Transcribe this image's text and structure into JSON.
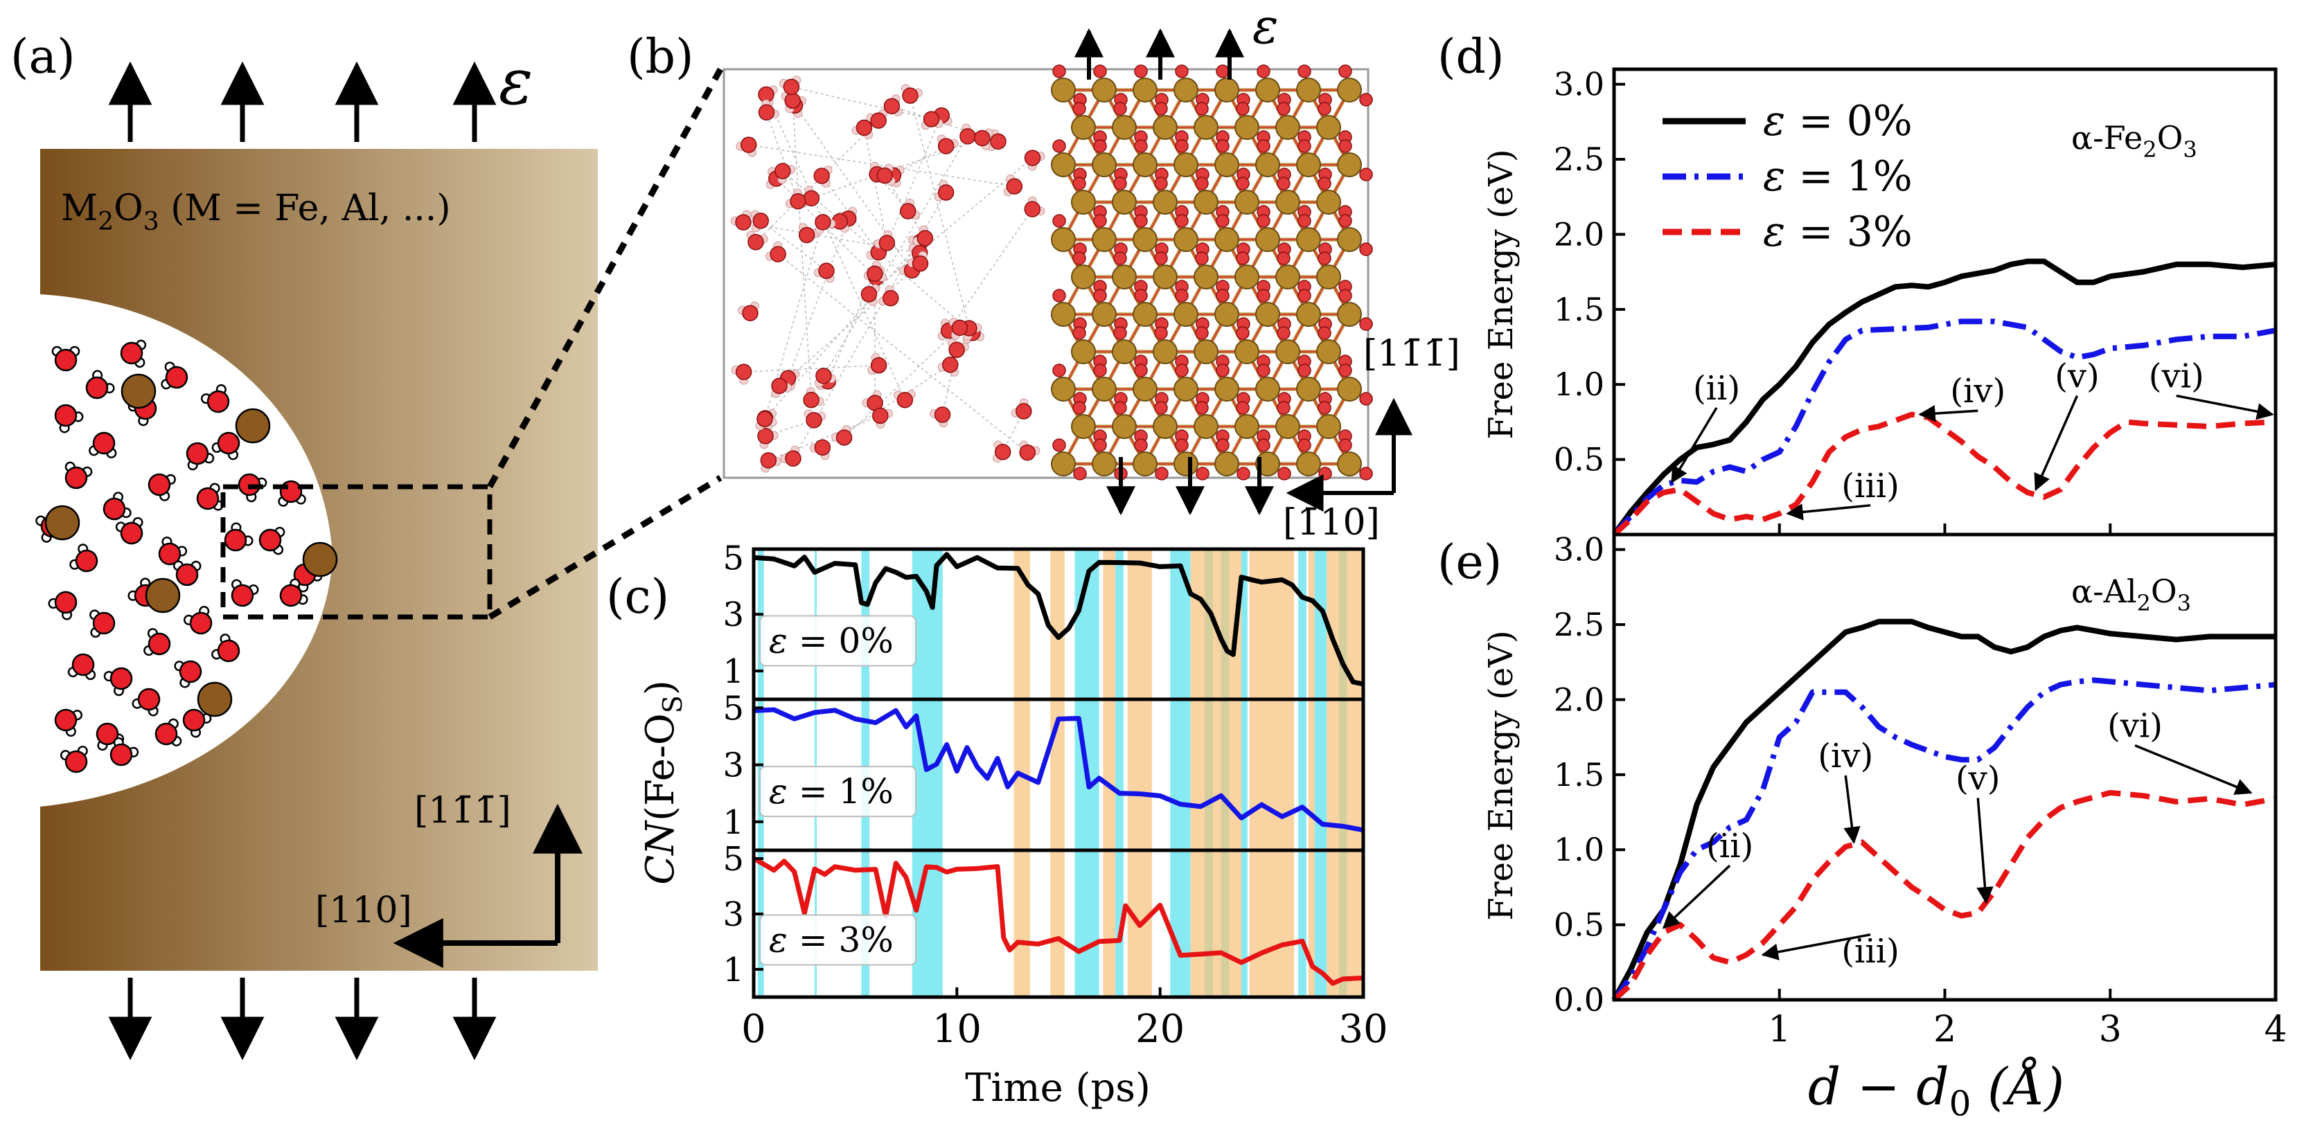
{
  "panel_labels": {
    "a": "(a)",
    "b": "(b)",
    "c": "(c)",
    "d": "(d)",
    "e": "(e)"
  },
  "strain_symbol": "ε",
  "panel_a": {
    "material": "M",
    "material_sub": "2",
    "material_rest": "O",
    "material_sub2": "3",
    "material_tail": " (M = Fe, Al, ...)",
    "dir_vertical": "[11̄1̄]",
    "dir_horizontal": "[110]"
  },
  "panel_b": {
    "dir_vertical": "[11̄1̄]",
    "dir_horizontal": "[1̄10]"
  },
  "colors": {
    "black": "#000000",
    "blue": "#1414e6",
    "red": "#e61414",
    "cyan": "#5fe3ee",
    "orange": "#f7c27a",
    "oxide_dark": "#7a5020",
    "oxide_light": "#d7c5a2",
    "oxygen": "#e8202a",
    "metal": "#8c5a1e"
  },
  "chart_data": [
    {
      "id": "c",
      "type": "line",
      "xlabel": "Time (ps)",
      "ylabel": "CN(Fe-O_S)",
      "ylabel_main": "CN",
      "ylabel_rest": "(Fe-O",
      "ylabel_sub": "S",
      "ylabel_close": ")",
      "xlim": [
        0,
        30
      ],
      "ylim": [
        0,
        5.3
      ],
      "xticks": [
        "0",
        "10",
        "20",
        "30"
      ],
      "yticks": [
        "1",
        "3",
        "5"
      ],
      "series": [
        {
          "name": "ε = 0%",
          "label_prefix": "ε",
          "label_value": " = 0%",
          "color": "#000000",
          "x": [
            0,
            1,
            2,
            2.5,
            3,
            4,
            5,
            5.3,
            5.6,
            6,
            6.5,
            7,
            7.5,
            8,
            8.5,
            8.8,
            9,
            9.5,
            10,
            11,
            12,
            13,
            13.5,
            14,
            14.5,
            15,
            15.5,
            16,
            16.5,
            17,
            18,
            19,
            20,
            21,
            21.5,
            22,
            22.5,
            23,
            23.3,
            23.6,
            24,
            24.5,
            25,
            26,
            26.5,
            27,
            27.5,
            28,
            28.5,
            29,
            29.5,
            30
          ],
          "y": [
            5,
            4.9,
            4.8,
            4.9,
            4.6,
            4.7,
            4.8,
            3.4,
            3.3,
            4.2,
            4.5,
            4.6,
            4.2,
            4.4,
            3.8,
            3.2,
            4.8,
            5,
            4.8,
            4.9,
            4.7,
            4.6,
            4.0,
            3.8,
            2.5,
            2.3,
            2.4,
            3.2,
            4.5,
            4.8,
            4.9,
            4.7,
            4.8,
            4.6,
            3.8,
            3.5,
            3.0,
            2.2,
            1.6,
            1.7,
            4.2,
            4.3,
            4.1,
            4.2,
            4.1,
            3.5,
            3.6,
            3.0,
            2.2,
            1.2,
            0.6,
            0.6
          ]
        },
        {
          "name": "ε = 1%",
          "label_prefix": "ε",
          "label_value": " = 1%",
          "color": "#1414e6",
          "x": [
            0,
            1,
            2,
            3,
            4,
            5,
            6,
            7,
            7.5,
            8,
            8.5,
            9,
            9.5,
            10,
            10.5,
            11,
            11.5,
            12,
            12.5,
            13,
            14,
            15,
            15.5,
            16,
            16.5,
            17,
            18,
            19,
            20,
            21,
            22,
            23,
            24,
            25,
            26,
            27,
            28,
            29,
            30
          ],
          "y": [
            4.8,
            5,
            4.6,
            4.8,
            5,
            4.5,
            4.6,
            4.8,
            4.4,
            4.7,
            2.8,
            3.1,
            3.6,
            2.9,
            3.5,
            3.0,
            2.5,
            3.2,
            2.3,
            2.6,
            2.5,
            4.5,
            4.7,
            4.6,
            2.2,
            2.6,
            1.9,
            2.1,
            1.8,
            1.7,
            1.5,
            1.9,
            1.2,
            1.5,
            1.3,
            1.4,
            1.0,
            0.8,
            0.7
          ]
        },
        {
          "name": "ε = 3%",
          "label_prefix": "ε",
          "label_value": " = 3%",
          "color": "#e61414",
          "x": [
            0,
            1,
            1.5,
            2,
            2.5,
            3,
            3.5,
            4,
            5,
            6,
            6.5,
            7,
            7.5,
            8,
            8.5,
            9,
            9.5,
            10,
            11,
            12,
            12.3,
            12.6,
            13,
            14,
            15,
            16,
            17,
            18,
            18.3,
            19,
            20,
            21,
            22,
            23,
            24,
            25,
            26,
            27,
            27.5,
            28,
            28.5,
            29,
            30
          ],
          "y": [
            4.9,
            4.7,
            4.8,
            4.6,
            3.0,
            4.6,
            4.5,
            4.6,
            4.7,
            4.5,
            3.0,
            4.8,
            4.3,
            3.2,
            4.6,
            4.8,
            4.4,
            4.7,
            4.6,
            4.7,
            2.2,
            1.6,
            2.1,
            1.8,
            2.2,
            1.6,
            2.0,
            2.1,
            3.2,
            2.7,
            3.2,
            1.6,
            1.5,
            1.6,
            1.3,
            1.5,
            2.0,
            1.9,
            1.2,
            0.8,
            0.5,
            0.7,
            0.6
          ]
        }
      ],
      "bands_cyan": [
        [
          0.2,
          0.5
        ],
        [
          3.0,
          3.1
        ],
        [
          5.3,
          5.7
        ],
        [
          7.8,
          9.3
        ],
        [
          15.8,
          17.0
        ],
        [
          17.8,
          18.2
        ],
        [
          20.5,
          21.5
        ],
        [
          22.2,
          22.6
        ],
        [
          23.0,
          23.4
        ],
        [
          24.0,
          24.3
        ],
        [
          26.8,
          27.2
        ],
        [
          27.6,
          28.2
        ],
        [
          28.8,
          29.2
        ]
      ],
      "bands_orange": [
        [
          12.8,
          13.6
        ],
        [
          14.6,
          15.3
        ],
        [
          17.2,
          17.8
        ],
        [
          18.4,
          19.6
        ],
        [
          21.5,
          24.0
        ],
        [
          24.4,
          26.6
        ],
        [
          27.3,
          27.6
        ],
        [
          28.2,
          30.0
        ]
      ]
    },
    {
      "id": "d",
      "type": "line",
      "title": "α-Fe₂O₃",
      "title_main": "α-Fe",
      "title_sub1": "2",
      "title_mid": "O",
      "title_sub2": "3",
      "ylabel": "Free Energy (eV)",
      "xlim": [
        0,
        4
      ],
      "ylim": [
        0,
        3.1
      ],
      "yticks": [
        "0.5",
        "1.0",
        "1.5",
        "2.0",
        "2.5",
        "3.0"
      ],
      "series": [
        {
          "name": "ε = 0%",
          "label_prefix": "ε",
          "label_value": " = 0%",
          "color": "#000000",
          "dash": "solid",
          "x": [
            0,
            0.1,
            0.2,
            0.3,
            0.4,
            0.5,
            0.6,
            0.7,
            0.8,
            0.9,
            1.0,
            1.1,
            1.2,
            1.3,
            1.4,
            1.5,
            1.6,
            1.7,
            1.8,
            1.9,
            2.0,
            2.1,
            2.2,
            2.3,
            2.4,
            2.5,
            2.6,
            2.7,
            2.8,
            2.9,
            3.0,
            3.2,
            3.4,
            3.6,
            3.8,
            4.0
          ],
          "y": [
            0,
            0.15,
            0.28,
            0.4,
            0.5,
            0.58,
            0.6,
            0.63,
            0.75,
            0.9,
            1.0,
            1.12,
            1.28,
            1.4,
            1.48,
            1.55,
            1.6,
            1.65,
            1.66,
            1.65,
            1.68,
            1.72,
            1.74,
            1.76,
            1.8,
            1.82,
            1.82,
            1.75,
            1.68,
            1.68,
            1.72,
            1.75,
            1.8,
            1.8,
            1.78,
            1.8
          ]
        },
        {
          "name": "ε = 1%",
          "label_prefix": "ε",
          "label_value": " = 1%",
          "color": "#1414e6",
          "dash": "dashdot",
          "x": [
            0,
            0.1,
            0.2,
            0.3,
            0.4,
            0.5,
            0.6,
            0.7,
            0.8,
            0.9,
            1.0,
            1.1,
            1.2,
            1.3,
            1.4,
            1.5,
            1.7,
            1.9,
            2.1,
            2.3,
            2.5,
            2.6,
            2.7,
            2.8,
            2.9,
            3.0,
            3.2,
            3.4,
            3.6,
            3.8,
            4.0
          ],
          "y": [
            0,
            0.12,
            0.24,
            0.33,
            0.36,
            0.35,
            0.42,
            0.45,
            0.42,
            0.5,
            0.55,
            0.72,
            0.95,
            1.15,
            1.3,
            1.36,
            1.37,
            1.38,
            1.42,
            1.42,
            1.38,
            1.3,
            1.22,
            1.18,
            1.2,
            1.24,
            1.26,
            1.3,
            1.32,
            1.32,
            1.36
          ]
        },
        {
          "name": "ε = 3%",
          "label_prefix": "ε",
          "label_value": " = 3%",
          "color": "#e61414",
          "dash": "dashed",
          "x": [
            0,
            0.1,
            0.2,
            0.3,
            0.4,
            0.5,
            0.6,
            0.7,
            0.8,
            0.9,
            1.0,
            1.1,
            1.2,
            1.3,
            1.4,
            1.5,
            1.6,
            1.7,
            1.8,
            1.9,
            2.0,
            2.1,
            2.2,
            2.3,
            2.4,
            2.5,
            2.6,
            2.7,
            2.8,
            2.9,
            3.0,
            3.1,
            3.2,
            3.4,
            3.6,
            3.8,
            4.0
          ],
          "y": [
            0,
            0.1,
            0.22,
            0.28,
            0.3,
            0.22,
            0.14,
            0.1,
            0.12,
            0.1,
            0.14,
            0.2,
            0.35,
            0.55,
            0.65,
            0.7,
            0.72,
            0.76,
            0.8,
            0.78,
            0.7,
            0.62,
            0.52,
            0.45,
            0.35,
            0.28,
            0.25,
            0.3,
            0.45,
            0.58,
            0.68,
            0.75,
            0.74,
            0.73,
            0.72,
            0.74,
            0.75
          ]
        }
      ],
      "annotations": [
        {
          "label": "(ii)",
          "text_x": 0.62,
          "text_y": 0.9,
          "point_x": 0.35,
          "point_y": 0.35
        },
        {
          "label": "(iii)",
          "text_x": 1.55,
          "text_y": 0.25,
          "point_x": 1.05,
          "point_y": 0.14
        },
        {
          "label": "(iv)",
          "text_x": 2.2,
          "text_y": 0.88,
          "point_x": 1.85,
          "point_y": 0.8
        },
        {
          "label": "(v)",
          "text_x": 2.8,
          "text_y": 0.98,
          "point_x": 2.55,
          "point_y": 0.3
        },
        {
          "label": "(vi)",
          "text_x": 3.4,
          "text_y": 0.98,
          "point_x": 3.98,
          "point_y": 0.8
        }
      ]
    },
    {
      "id": "e",
      "type": "line",
      "title": "α-Al₂O₃",
      "title_main": "α-Al",
      "title_sub1": "2",
      "title_mid": "O",
      "title_sub2": "3",
      "ylabel": "Free Energy (eV)",
      "xlabel": "d − d0 (Å)",
      "xlabel_d": "d",
      "xlabel_minus": " − ",
      "xlabel_d0": "d",
      "xlabel_sub": "0",
      "xlabel_unit": " (Å)",
      "xlim": [
        0,
        4
      ],
      "ylim": [
        0,
        3.1
      ],
      "xticks": [
        "1",
        "2",
        "3",
        "4"
      ],
      "yticks": [
        "0.0",
        "0.5",
        "1.0",
        "1.5",
        "2.0",
        "2.5",
        "3.0"
      ],
      "series": [
        {
          "name": "ε = 0%",
          "color": "#000000",
          "dash": "solid",
          "x": [
            0,
            0.1,
            0.2,
            0.3,
            0.4,
            0.5,
            0.6,
            0.7,
            0.8,
            0.9,
            1.0,
            1.1,
            1.2,
            1.3,
            1.4,
            1.5,
            1.6,
            1.7,
            1.8,
            1.9,
            2.0,
            2.1,
            2.2,
            2.3,
            2.4,
            2.5,
            2.6,
            2.7,
            2.8,
            2.9,
            3.0,
            3.2,
            3.4,
            3.6,
            3.8,
            4.0
          ],
          "y": [
            0,
            0.2,
            0.45,
            0.6,
            0.9,
            1.3,
            1.55,
            1.7,
            1.85,
            1.95,
            2.05,
            2.15,
            2.25,
            2.35,
            2.45,
            2.48,
            2.52,
            2.52,
            2.52,
            2.48,
            2.45,
            2.42,
            2.42,
            2.35,
            2.32,
            2.35,
            2.42,
            2.46,
            2.48,
            2.46,
            2.44,
            2.42,
            2.4,
            2.42,
            2.42,
            2.42
          ]
        },
        {
          "name": "ε = 1%",
          "color": "#1414e6",
          "dash": "dashdot",
          "x": [
            0,
            0.1,
            0.2,
            0.3,
            0.4,
            0.5,
            0.6,
            0.7,
            0.8,
            0.9,
            1.0,
            1.1,
            1.2,
            1.3,
            1.4,
            1.5,
            1.6,
            1.7,
            1.8,
            1.9,
            2.0,
            2.1,
            2.2,
            2.3,
            2.4,
            2.5,
            2.6,
            2.7,
            2.8,
            2.9,
            3.0,
            3.2,
            3.4,
            3.6,
            3.8,
            4.0
          ],
          "y": [
            0,
            0.15,
            0.35,
            0.6,
            0.85,
            1.0,
            1.05,
            1.15,
            1.2,
            1.4,
            1.75,
            1.85,
            2.05,
            2.05,
            2.05,
            1.95,
            1.82,
            1.75,
            1.7,
            1.66,
            1.62,
            1.6,
            1.6,
            1.68,
            1.82,
            1.95,
            2.05,
            2.1,
            2.12,
            2.13,
            2.12,
            2.1,
            2.08,
            2.06,
            2.08,
            2.1
          ]
        },
        {
          "name": "ε = 3%",
          "color": "#e61414",
          "dash": "dashed",
          "x": [
            0,
            0.1,
            0.2,
            0.3,
            0.4,
            0.5,
            0.6,
            0.7,
            0.8,
            0.9,
            1.0,
            1.1,
            1.2,
            1.3,
            1.4,
            1.5,
            1.6,
            1.7,
            1.8,
            1.9,
            2.0,
            2.1,
            2.2,
            2.3,
            2.4,
            2.5,
            2.6,
            2.7,
            2.8,
            2.9,
            3.0,
            3.2,
            3.4,
            3.6,
            3.8,
            4.0
          ],
          "y": [
            0,
            0.1,
            0.3,
            0.45,
            0.5,
            0.4,
            0.28,
            0.25,
            0.3,
            0.38,
            0.5,
            0.62,
            0.8,
            0.92,
            1.02,
            1.05,
            0.95,
            0.85,
            0.75,
            0.68,
            0.6,
            0.56,
            0.58,
            0.72,
            0.9,
            1.08,
            1.2,
            1.28,
            1.32,
            1.35,
            1.38,
            1.36,
            1.32,
            1.34,
            1.3,
            1.34
          ]
        }
      ],
      "annotations": [
        {
          "label": "(ii)",
          "text_x": 0.7,
          "text_y": 0.95,
          "point_x": 0.3,
          "point_y": 0.48
        },
        {
          "label": "(iii)",
          "text_x": 1.55,
          "text_y": 0.25,
          "point_x": 0.9,
          "point_y": 0.3
        },
        {
          "label": "(iv)",
          "text_x": 1.4,
          "text_y": 1.55,
          "point_x": 1.45,
          "point_y": 1.05
        },
        {
          "label": "(v)",
          "text_x": 2.2,
          "text_y": 1.4,
          "point_x": 2.25,
          "point_y": 0.65
        },
        {
          "label": "(vi)",
          "text_x": 3.15,
          "text_y": 1.75,
          "point_x": 3.85,
          "point_y": 1.38
        }
      ]
    }
  ]
}
